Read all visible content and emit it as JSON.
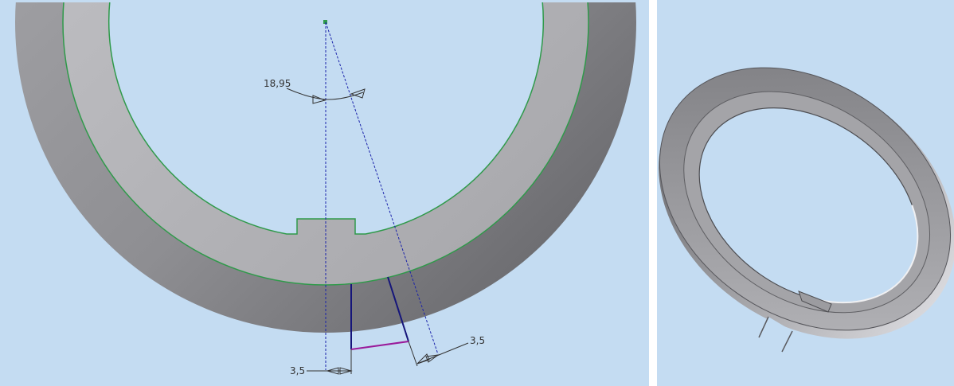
{
  "colors": {
    "background": "#c4dcf2",
    "ring_outer_dark": "#6c6c6e",
    "ring_face_light": "#b4b4b8",
    "sketch_edge": "#2f9a4a",
    "construction_line": "#1a22aa",
    "profile_line": "#15157a",
    "profile_bottom": "#9a1a9a",
    "dimension_line": "#333333"
  },
  "left_view": {
    "dimensions": {
      "angle": "18,95",
      "width_horizontal": "3,5",
      "width_aligned": "3,5"
    }
  },
  "right_view": {
    "description_icons": [
      "ring-with-notch-3d"
    ]
  }
}
